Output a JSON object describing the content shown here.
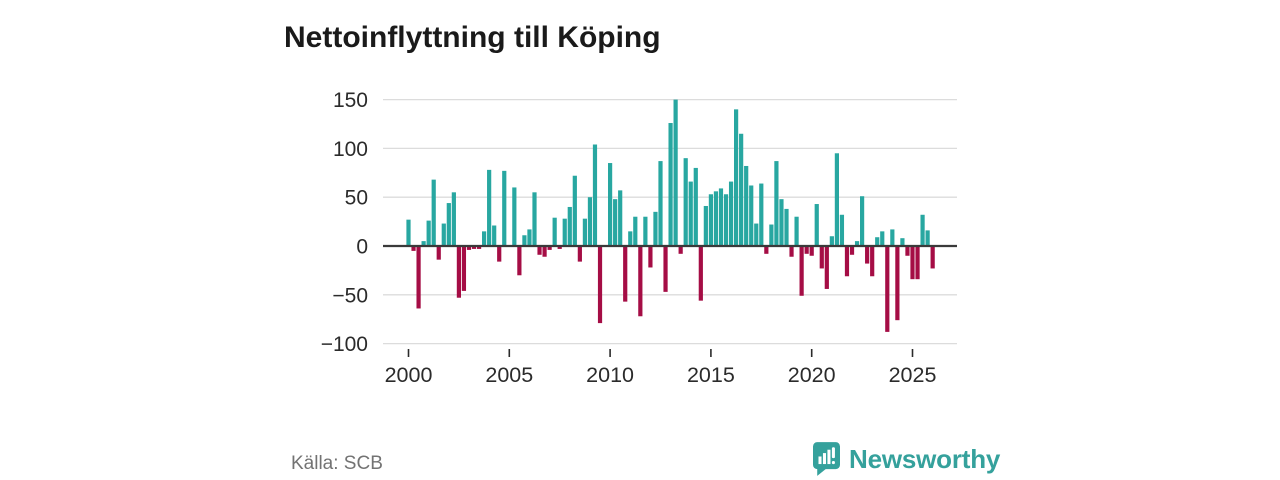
{
  "title": "Nettoinflyttning till Köping",
  "source_label": "Källa: SCB",
  "brand": {
    "name": "Newsworthy"
  },
  "colors": {
    "positive_bar": "#28a7a1",
    "negative_bar": "#a50d45",
    "gridline": "#dcdcdc",
    "zero_line": "#3a3a3a",
    "axis_text": "#2b2b2b",
    "title_text": "#1a1a1a",
    "source_text": "#737373",
    "brand_teal": "#35a19c"
  },
  "chart_data": {
    "type": "bar",
    "title": "Nettoinflyttning till Köping",
    "xlabel": "",
    "ylabel": "",
    "x_unit": "quarter",
    "start_period": "2000-Q1",
    "end_period": "2026-Q1",
    "x_tick_labels": [
      "2000",
      "2005",
      "2010",
      "2015",
      "2020",
      "2025"
    ],
    "y_ticks": [
      150,
      100,
      50,
      0,
      -50,
      -100
    ],
    "ylim": [
      -110,
      160
    ],
    "grid": true,
    "legend": "none",
    "positive_color_meaning": "net in-migration",
    "negative_color_meaning": "net out-migration",
    "values": [
      27,
      -5,
      -64,
      5,
      26,
      68,
      -14,
      23,
      44,
      55,
      -53,
      -46,
      -4,
      -3,
      -3,
      15,
      78,
      21,
      -16,
      77,
      0,
      60,
      -30,
      11,
      17,
      55,
      -9,
      -11,
      -4,
      29,
      -3,
      28,
      40,
      72,
      -16,
      28,
      50,
      104,
      -79,
      0,
      85,
      48,
      57,
      -57,
      15,
      30,
      -72,
      30,
      -22,
      35,
      87,
      -47,
      126,
      150,
      -8,
      90,
      66,
      80,
      -56,
      41,
      53,
      56,
      59,
      53,
      66,
      140,
      115,
      82,
      62,
      23,
      64,
      -8,
      22,
      87,
      48,
      38,
      -11,
      30,
      -51,
      -8,
      -10,
      43,
      -23,
      -44,
      10,
      95,
      32,
      -31,
      -9,
      5,
      51,
      -18,
      -31,
      9,
      15,
      -88,
      17,
      -76,
      8,
      -10,
      -34,
      -34,
      32,
      16,
      -23
    ]
  }
}
